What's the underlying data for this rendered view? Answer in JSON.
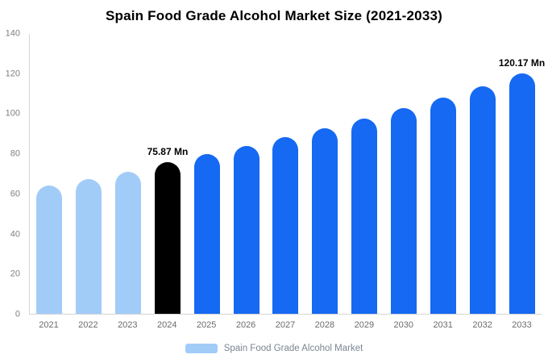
{
  "title": "Spain Food Grade Alcohol Market Size (2021-2033)",
  "legend": {
    "label": "Spain Food Grade Alcohol Market",
    "swatch_color": "#A2CCF8"
  },
  "colors": {
    "light_blue": "#A2CCF8",
    "highlight_black": "#000000",
    "primary_blue": "#1569F2",
    "axis_text": "#808080",
    "legend_text": "#7a8691"
  },
  "chart_data": {
    "type": "bar",
    "title": "Spain Food Grade Alcohol Market Size (2021-2033)",
    "xlabel": "",
    "ylabel": "",
    "categories": [
      "2021",
      "2022",
      "2023",
      "2024",
      "2025",
      "2026",
      "2027",
      "2028",
      "2029",
      "2030",
      "2031",
      "2032",
      "2033"
    ],
    "values": [
      64.0,
      67.4,
      71.0,
      75.87,
      79.9,
      84.0,
      88.4,
      93.0,
      97.8,
      102.9,
      108.2,
      113.9,
      120.17
    ],
    "bar_colors": [
      "#A2CCF8",
      "#A2CCF8",
      "#A2CCF8",
      "#000000",
      "#1569F2",
      "#1569F2",
      "#1569F2",
      "#1569F2",
      "#1569F2",
      "#1569F2",
      "#1569F2",
      "#1569F2",
      "#1569F2"
    ],
    "annotations": [
      {
        "index": 3,
        "text": "75.87 Mn"
      },
      {
        "index": 12,
        "text": "120.17 Mn"
      }
    ],
    "ylim": [
      0,
      140
    ],
    "yticks": [
      0,
      20,
      40,
      60,
      80,
      100,
      120,
      140
    ],
    "grid": false,
    "legend_position": "bottom"
  }
}
